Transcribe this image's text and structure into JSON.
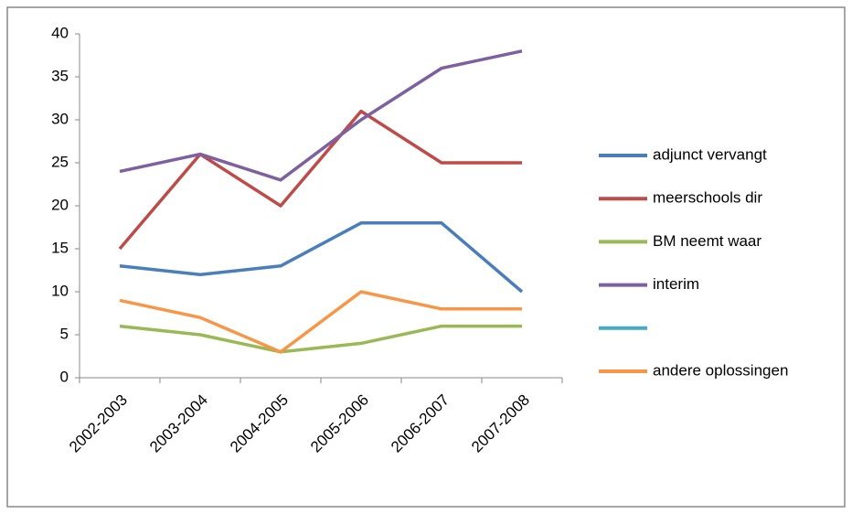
{
  "chart_data": {
    "type": "line",
    "categories": [
      "2002-2003",
      "2003-2004",
      "2004-2005",
      "2005-2006",
      "2006-2007",
      "2007-2008"
    ],
    "series": [
      {
        "name": "adjunct vervangt",
        "color": "#4a7ebb",
        "values": [
          13,
          12,
          13,
          18,
          18,
          10
        ]
      },
      {
        "name": "meerschools dir",
        "color": "#be4b48",
        "values": [
          15,
          26,
          20,
          31,
          25,
          25
        ]
      },
      {
        "name": "BM neemt waar",
        "color": "#98b954",
        "values": [
          6,
          5,
          3,
          4,
          6,
          6
        ]
      },
      {
        "name": "interim",
        "color": "#7d60a0",
        "values": [
          24,
          26,
          23,
          30,
          36,
          38
        ]
      },
      {
        "name": null,
        "color": "#46aac5",
        "values": [
          null,
          null,
          null,
          null,
          null,
          null
        ]
      },
      {
        "name": "andere oplossingen",
        "color": "#f79646",
        "values": [
          9,
          7,
          3,
          10,
          8,
          8
        ]
      }
    ],
    "ylim": [
      0,
      40
    ],
    "yticks": [
      0,
      5,
      10,
      15,
      20,
      25,
      30,
      35,
      40
    ],
    "grid": false,
    "legend": "right"
  }
}
